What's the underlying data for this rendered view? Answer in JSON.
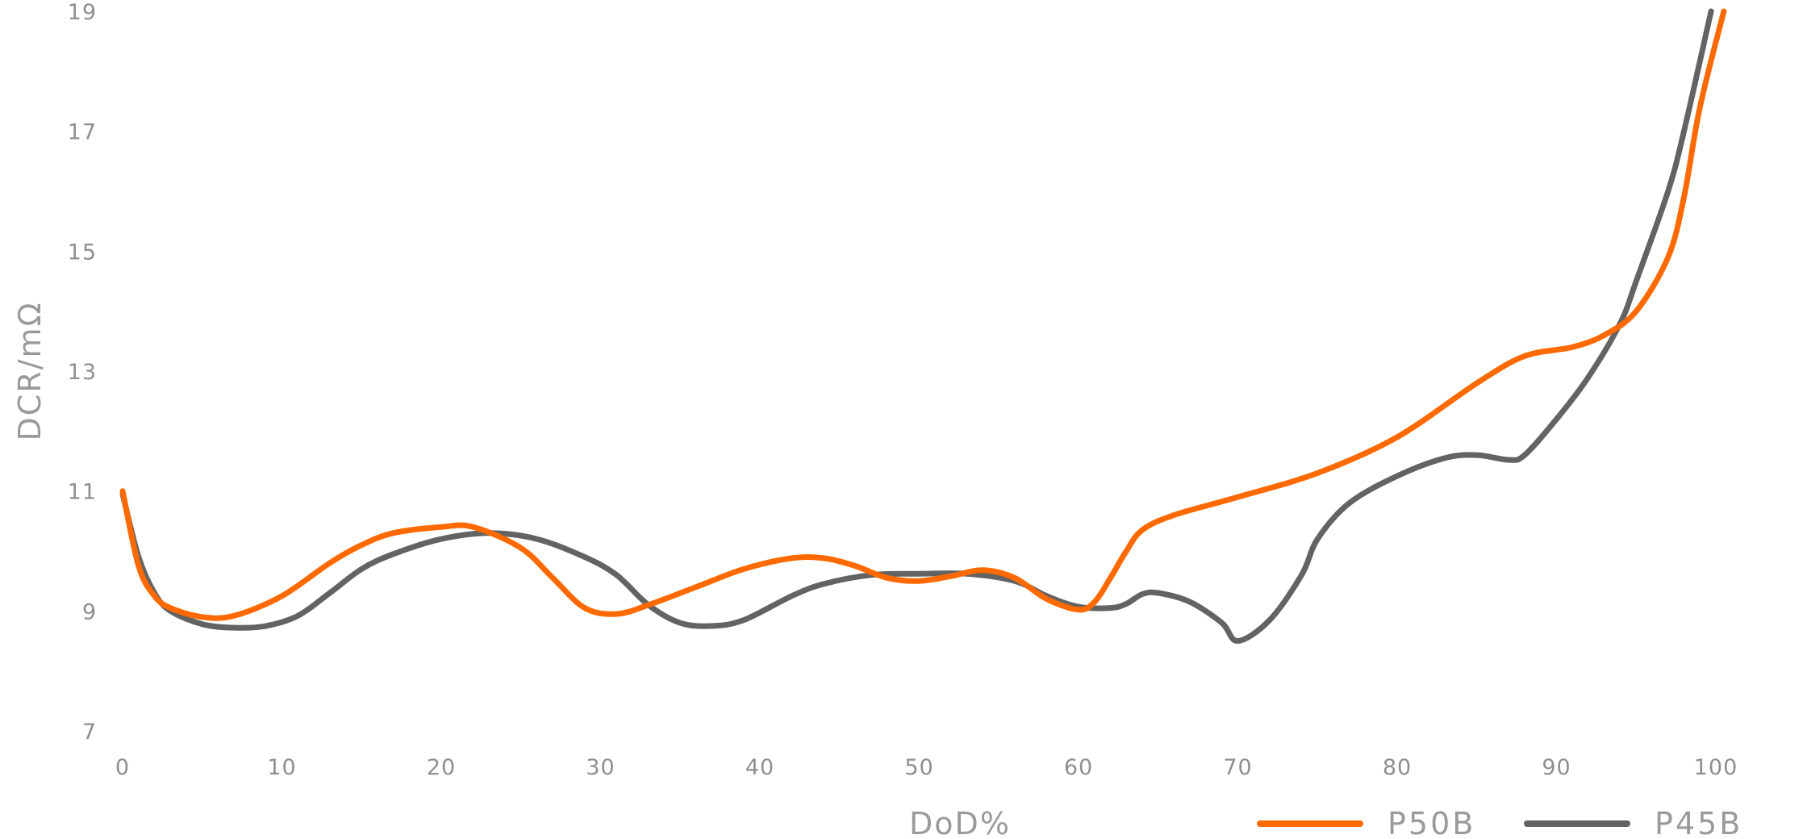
{
  "chart_data": {
    "type": "line",
    "title": "",
    "xlabel": "DoD%",
    "ylabel": "DCR/mΩ",
    "xlim": [
      0,
      100
    ],
    "ylim": [
      7,
      19
    ],
    "x_ticks": [
      "0",
      "10",
      "20",
      "30",
      "40",
      "50",
      "60",
      "70",
      "80",
      "90",
      "100"
    ],
    "y_ticks": [
      "7",
      "9",
      "11",
      "13",
      "15",
      "17",
      "19"
    ],
    "grid": false,
    "legend_position": "bottom-right",
    "series": [
      {
        "name": "P50B",
        "color": "#ff6a00",
        "points": [
          [
            0,
            11.0
          ],
          [
            1,
            9.75
          ],
          [
            2,
            9.25
          ],
          [
            3,
            9.05
          ],
          [
            5,
            8.9
          ],
          [
            7,
            8.92
          ],
          [
            10,
            9.25
          ],
          [
            13,
            9.8
          ],
          [
            15,
            10.1
          ],
          [
            17,
            10.3
          ],
          [
            20,
            10.4
          ],
          [
            22,
            10.4
          ],
          [
            25,
            10.05
          ],
          [
            27,
            9.55
          ],
          [
            29,
            9.05
          ],
          [
            31,
            8.95
          ],
          [
            33,
            9.1
          ],
          [
            36,
            9.4
          ],
          [
            39,
            9.7
          ],
          [
            42,
            9.88
          ],
          [
            44,
            9.88
          ],
          [
            46,
            9.75
          ],
          [
            48,
            9.55
          ],
          [
            50,
            9.5
          ],
          [
            52,
            9.58
          ],
          [
            54,
            9.68
          ],
          [
            56,
            9.55
          ],
          [
            58,
            9.2
          ],
          [
            60,
            9.02
          ],
          [
            61,
            9.15
          ],
          [
            62,
            9.55
          ],
          [
            63,
            10.0
          ],
          [
            64,
            10.35
          ],
          [
            66,
            10.6
          ],
          [
            70,
            10.9
          ],
          [
            75,
            11.3
          ],
          [
            80,
            11.9
          ],
          [
            85,
            12.8
          ],
          [
            88,
            13.25
          ],
          [
            91,
            13.4
          ],
          [
            93,
            13.6
          ],
          [
            95,
            14.0
          ],
          [
            97,
            14.9
          ],
          [
            98,
            15.9
          ],
          [
            99,
            17.4
          ],
          [
            100.5,
            19.0
          ]
        ]
      },
      {
        "name": "P45B",
        "color": "#636363",
        "points": [
          [
            0,
            10.95
          ],
          [
            1,
            9.9
          ],
          [
            2,
            9.3
          ],
          [
            3,
            9.0
          ],
          [
            5,
            8.78
          ],
          [
            7,
            8.72
          ],
          [
            9,
            8.75
          ],
          [
            11,
            8.92
          ],
          [
            13,
            9.3
          ],
          [
            15,
            9.7
          ],
          [
            17,
            9.95
          ],
          [
            20,
            10.2
          ],
          [
            23,
            10.3
          ],
          [
            26,
            10.2
          ],
          [
            29,
            9.9
          ],
          [
            31,
            9.6
          ],
          [
            33,
            9.1
          ],
          [
            35,
            8.8
          ],
          [
            37,
            8.75
          ],
          [
            39,
            8.85
          ],
          [
            42,
            9.25
          ],
          [
            44,
            9.45
          ],
          [
            47,
            9.6
          ],
          [
            50,
            9.62
          ],
          [
            53,
            9.62
          ],
          [
            56,
            9.5
          ],
          [
            58,
            9.25
          ],
          [
            60,
            9.07
          ],
          [
            62,
            9.05
          ],
          [
            63,
            9.12
          ],
          [
            64,
            9.28
          ],
          [
            65,
            9.3
          ],
          [
            67,
            9.15
          ],
          [
            69,
            8.8
          ],
          [
            70,
            8.5
          ],
          [
            72,
            8.85
          ],
          [
            74,
            9.6
          ],
          [
            75,
            10.2
          ],
          [
            77,
            10.8
          ],
          [
            80,
            11.25
          ],
          [
            83,
            11.55
          ],
          [
            85,
            11.6
          ],
          [
            87,
            11.52
          ],
          [
            88,
            11.6
          ],
          [
            90,
            12.2
          ],
          [
            92,
            12.9
          ],
          [
            94,
            13.8
          ],
          [
            95,
            14.5
          ],
          [
            97,
            16.0
          ],
          [
            98,
            17.0
          ],
          [
            99.7,
            19.0
          ]
        ]
      }
    ]
  }
}
